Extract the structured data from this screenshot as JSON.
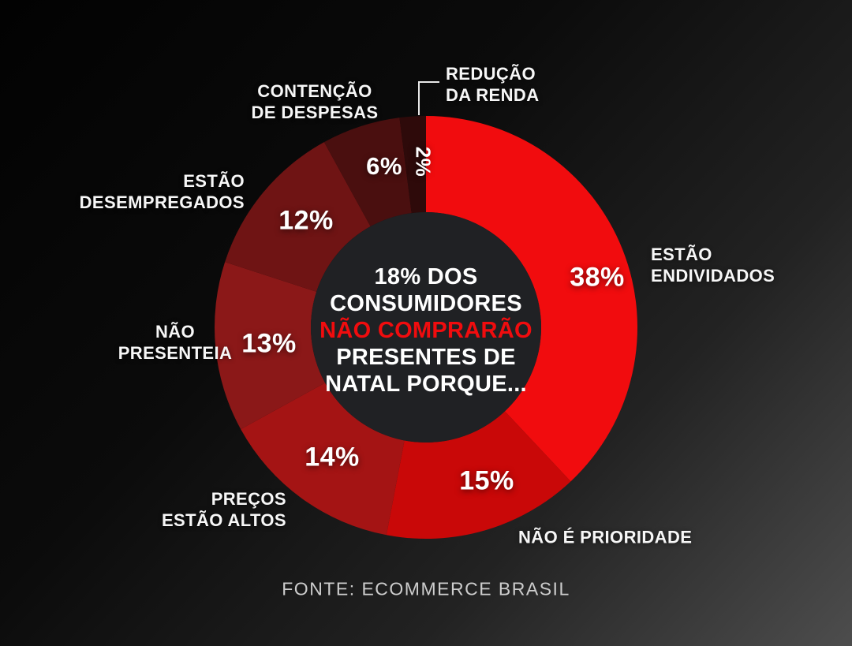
{
  "page": {
    "footer": "FONTE: ECOMMERCE BRASIL"
  },
  "colors": {
    "background_start": "#020202",
    "background_end": "#4d4d4d",
    "accent_red": "#f10c0e",
    "center_circle": "#202124",
    "label_white": "#f7f7f7",
    "footer_gray": "#cdcdcd",
    "connector_line": "#e8e8e8"
  },
  "center_text": {
    "line1": "18% DOS",
    "line2": "CONSUMIDORES",
    "line3": "NÃO COMPRARÃO",
    "line4": "PRESENTES DE",
    "line5": "NATAL PORQUE..."
  },
  "chart_data": {
    "type": "pie",
    "variant": "donut",
    "title": "18% DOS CONSUMIDORES NÃO COMPRARÃO PRESENTES DE NATAL PORQUE...",
    "source": "FONTE: ECOMMERCE BRASIL",
    "start_angle_deg": 0,
    "direction": "clockwise",
    "legend_position": "outside-callouts",
    "slices": [
      {
        "label": "ESTÃO ENDIVIDADOS",
        "label_lines": [
          "ESTÃO",
          "ENDIVIDADOS"
        ],
        "value": 38,
        "pct_label": "38%",
        "color": "#f10c0e"
      },
      {
        "label": "NÃO É PRIORIDADE",
        "label_lines": [
          "NÃO É PRIORIDADE"
        ],
        "value": 15,
        "pct_label": "15%",
        "color": "#c90808"
      },
      {
        "label": "PREÇOS ESTÃO ALTOS",
        "label_lines": [
          "PREÇOS",
          "ESTÃO ALTOS"
        ],
        "value": 14,
        "pct_label": "14%",
        "color": "#a41414"
      },
      {
        "label": "NÃO PRESENTEIA",
        "label_lines": [
          "NÃO",
          "PRESENTEIA"
        ],
        "value": 13,
        "pct_label": "13%",
        "color": "#8b1818"
      },
      {
        "label": "ESTÃO DESEMPREGADOS",
        "label_lines": [
          "ESTÃO",
          "DESEMPREGADOS"
        ],
        "value": 12,
        "pct_label": "12%",
        "color": "#6f1414"
      },
      {
        "label": "CONTENÇÃO DE DESPESAS",
        "label_lines": [
          "CONTENÇÃO",
          "DE DESPESAS"
        ],
        "value": 6,
        "pct_label": "6%",
        "color": "#4a0f0f"
      },
      {
        "label": "REDUÇÃO DA RENDA",
        "label_lines": [
          "REDUÇÃO",
          "DA RENDA"
        ],
        "value": 2,
        "pct_label": "2%",
        "color": "#2e0a0a"
      }
    ]
  }
}
